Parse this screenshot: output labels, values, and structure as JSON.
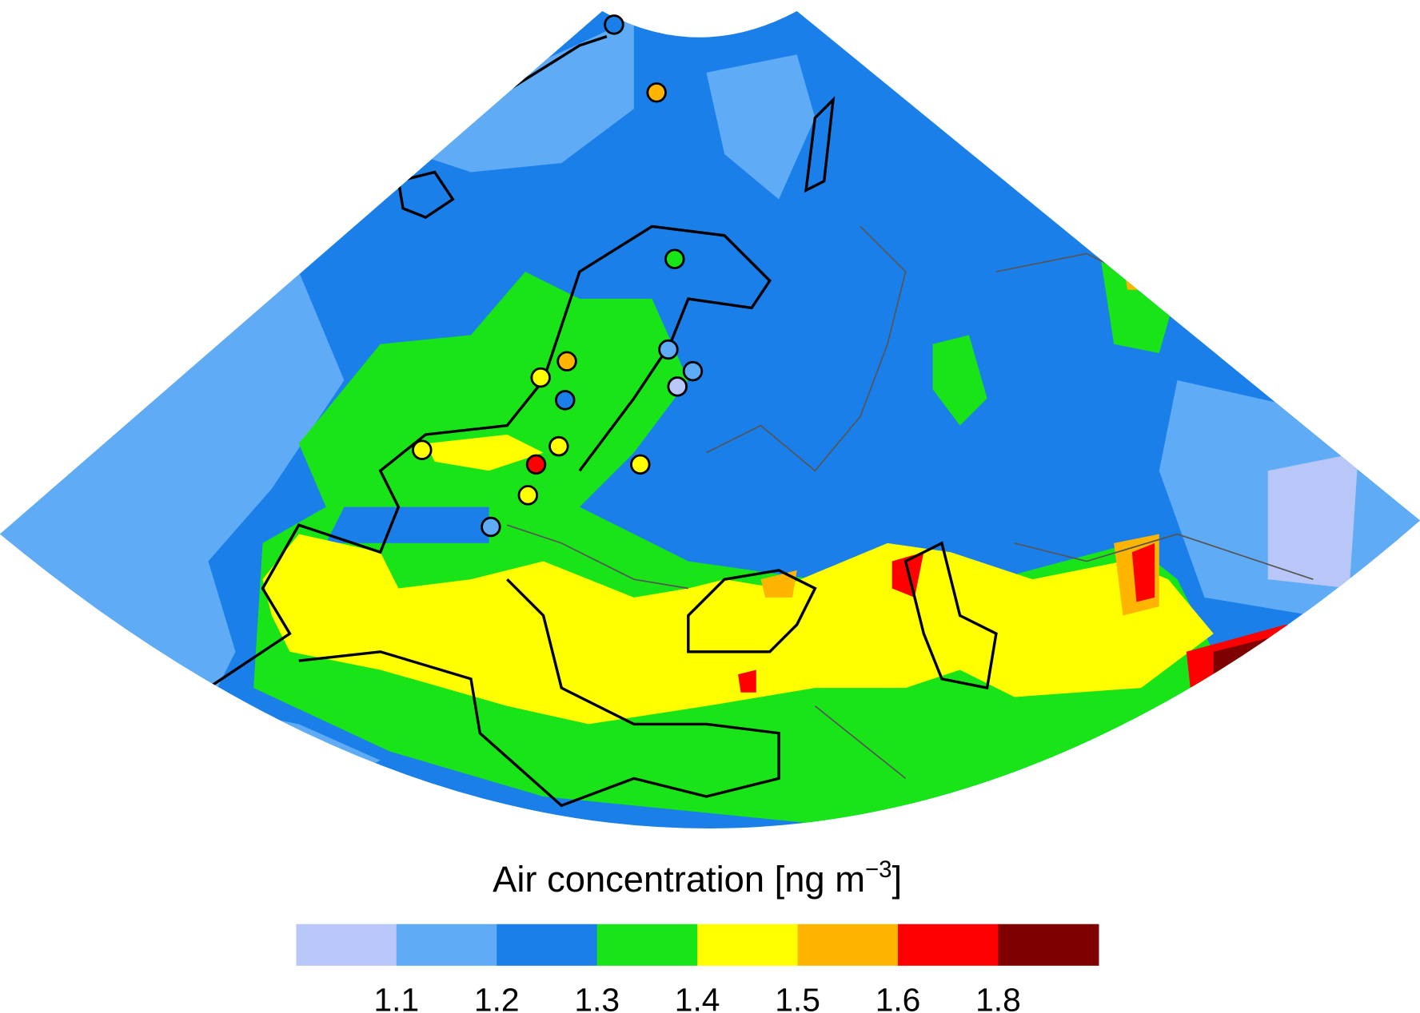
{
  "legend": {
    "title": {
      "text": "Air concentration [ng m",
      "superscript": "−3",
      "suffix": "]"
    },
    "colors": [
      "#b8c6f8",
      "#5fabf5",
      "#1b7fe9",
      "#18e418",
      "#ffff00",
      "#ffb400",
      "#ff0000",
      "#7f0000"
    ],
    "ticks": [
      1.1,
      1.2,
      1.3,
      1.4,
      1.5,
      1.6,
      1.8
    ]
  }
}
